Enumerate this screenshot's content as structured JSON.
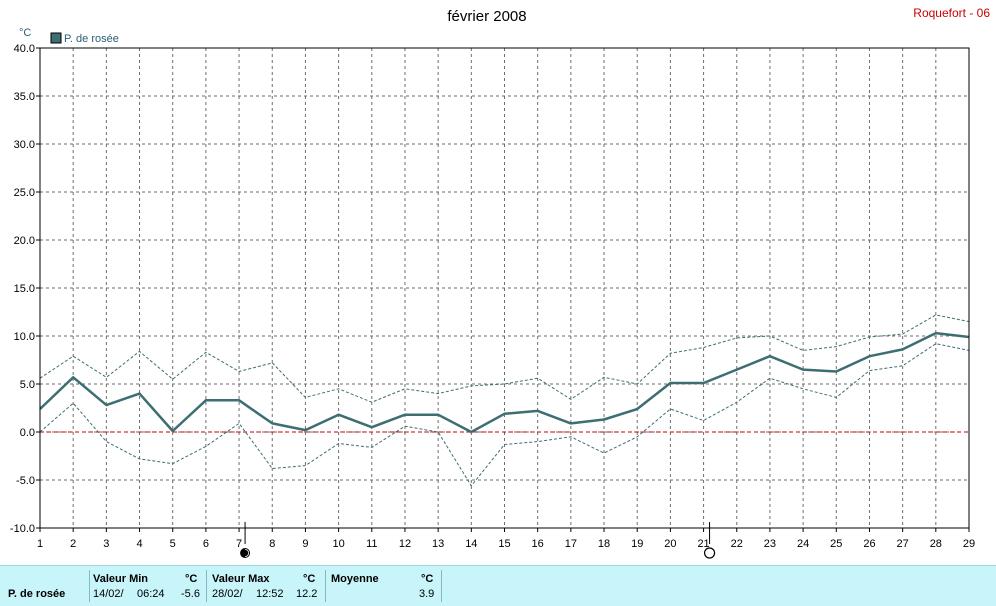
{
  "header": {
    "title": "février 2008",
    "station": "Roquefort - 06"
  },
  "legend": {
    "label": "P. de rosée",
    "color": "#3d6e72"
  },
  "chart_data": {
    "type": "line",
    "title": "février 2008",
    "ylabel": "°C",
    "xlabel": "",
    "ylim": [
      -10,
      40
    ],
    "xlim": [
      1,
      29
    ],
    "y_ticks": [
      "-10.0",
      "-5.0",
      "0.0",
      "5.0",
      "10.0",
      "15.0",
      "20.0",
      "25.0",
      "30.0",
      "35.0",
      "40.0"
    ],
    "x_ticks": [
      "1",
      "2",
      "3",
      "4",
      "5",
      "6",
      "7",
      "8",
      "9",
      "10",
      "11",
      "12",
      "13",
      "14",
      "15",
      "16",
      "17",
      "18",
      "19",
      "20",
      "21",
      "22",
      "23",
      "24",
      "25",
      "26",
      "27",
      "28",
      "29"
    ],
    "grid": true,
    "legend_position": "top-left",
    "x": [
      1,
      2,
      3,
      4,
      5,
      6,
      7,
      8,
      9,
      10,
      11,
      12,
      13,
      14,
      15,
      16,
      17,
      18,
      19,
      20,
      21,
      22,
      23,
      24,
      25,
      26,
      27,
      28,
      29
    ],
    "series": [
      {
        "name": "P. de rosée",
        "style": "solid",
        "color": "#3d6e72",
        "values": [
          2.4,
          5.7,
          2.8,
          4.0,
          0.1,
          3.3,
          3.3,
          0.9,
          0.2,
          1.8,
          0.5,
          1.8,
          1.8,
          0.0,
          1.9,
          2.2,
          0.9,
          1.3,
          2.4,
          5.1,
          5.1,
          6.5,
          7.9,
          6.5,
          6.3,
          7.9,
          8.6,
          10.3,
          9.9
        ]
      },
      {
        "style": "dashed",
        "color": "#3d6e72",
        "values": [
          5.6,
          7.9,
          5.7,
          8.4,
          5.5,
          8.3,
          6.3,
          7.2,
          3.6,
          4.5,
          3.1,
          4.5,
          4.0,
          4.8,
          5.0,
          5.6,
          3.4,
          5.7,
          5.0,
          8.2,
          8.8,
          9.8,
          10.0,
          8.5,
          8.9,
          9.9,
          10.2,
          12.2,
          11.5
        ]
      },
      {
        "style": "dashed",
        "color": "#3d6e72",
        "values": [
          0.0,
          3.0,
          -1.0,
          -2.8,
          -3.3,
          -1.5,
          0.9,
          -3.8,
          -3.5,
          -1.2,
          -1.6,
          0.6,
          0.0,
          -5.6,
          -1.3,
          -1.0,
          -0.5,
          -2.2,
          -0.5,
          2.4,
          1.2,
          3.1,
          5.6,
          4.5,
          3.6,
          6.4,
          6.9,
          9.2,
          8.5
        ]
      }
    ],
    "reference_line": {
      "value": 0,
      "color": "#cc0000",
      "style": "dashed"
    },
    "moon_phases": [
      {
        "day": 7,
        "phase": "new-moon"
      },
      {
        "day": 21,
        "phase": "full-moon"
      }
    ]
  },
  "stats": {
    "row_label": "P. de rosée",
    "min": {
      "label": "Valeur Min",
      "unit": "°C",
      "date": "14/02/",
      "time": "06:24",
      "value": "-5.6"
    },
    "max": {
      "label": "Valeur Max",
      "unit": "°C",
      "date": "28/02/",
      "time": "12:52",
      "value": "12.2"
    },
    "mean": {
      "label": "Moyenne",
      "unit": "°C",
      "value": "3.9"
    }
  }
}
